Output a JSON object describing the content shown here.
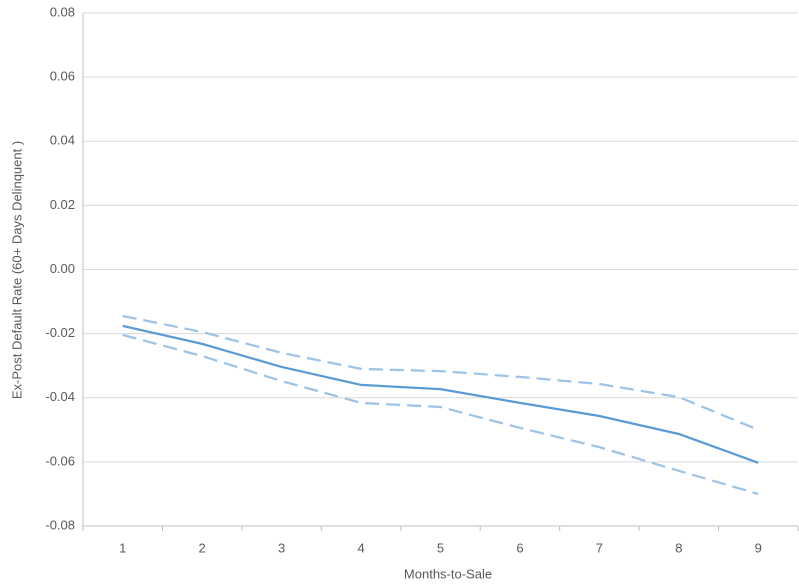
{
  "chart_data": {
    "type": "line",
    "x_label": "Months-to-Sale",
    "y_label": "Ex-Post Default Rate (60+ Days Delinquent )",
    "categories": [
      "1",
      "2",
      "3",
      "4",
      "5",
      "6",
      "7",
      "8",
      "9"
    ],
    "series": [
      {
        "color": "#5b9bd5",
        "dashed": false,
        "values": [
          -0.0176,
          -0.0232,
          -0.0304,
          -0.036,
          -0.0373,
          -0.0416,
          -0.0457,
          -0.0513,
          -0.0603
        ]
      },
      {
        "color": "#9dc3e6",
        "dashed": true,
        "values": [
          -0.0145,
          -0.0195,
          -0.026,
          -0.031,
          -0.0317,
          -0.0335,
          -0.0357,
          -0.0398,
          -0.05
        ]
      },
      {
        "color": "#9dc3e6",
        "dashed": true,
        "values": [
          -0.0204,
          -0.027,
          -0.0348,
          -0.0416,
          -0.0429,
          -0.0494,
          -0.0554,
          -0.0628,
          -0.07
        ]
      }
    ],
    "ylim": [
      -0.08,
      0.08
    ],
    "yticks": [
      -0.08,
      -0.06,
      -0.04,
      -0.02,
      {
        "value": 0,
        "label": "0.00"
      },
      0.02,
      0.04,
      0.06,
      0.08
    ],
    "grid": true
  }
}
